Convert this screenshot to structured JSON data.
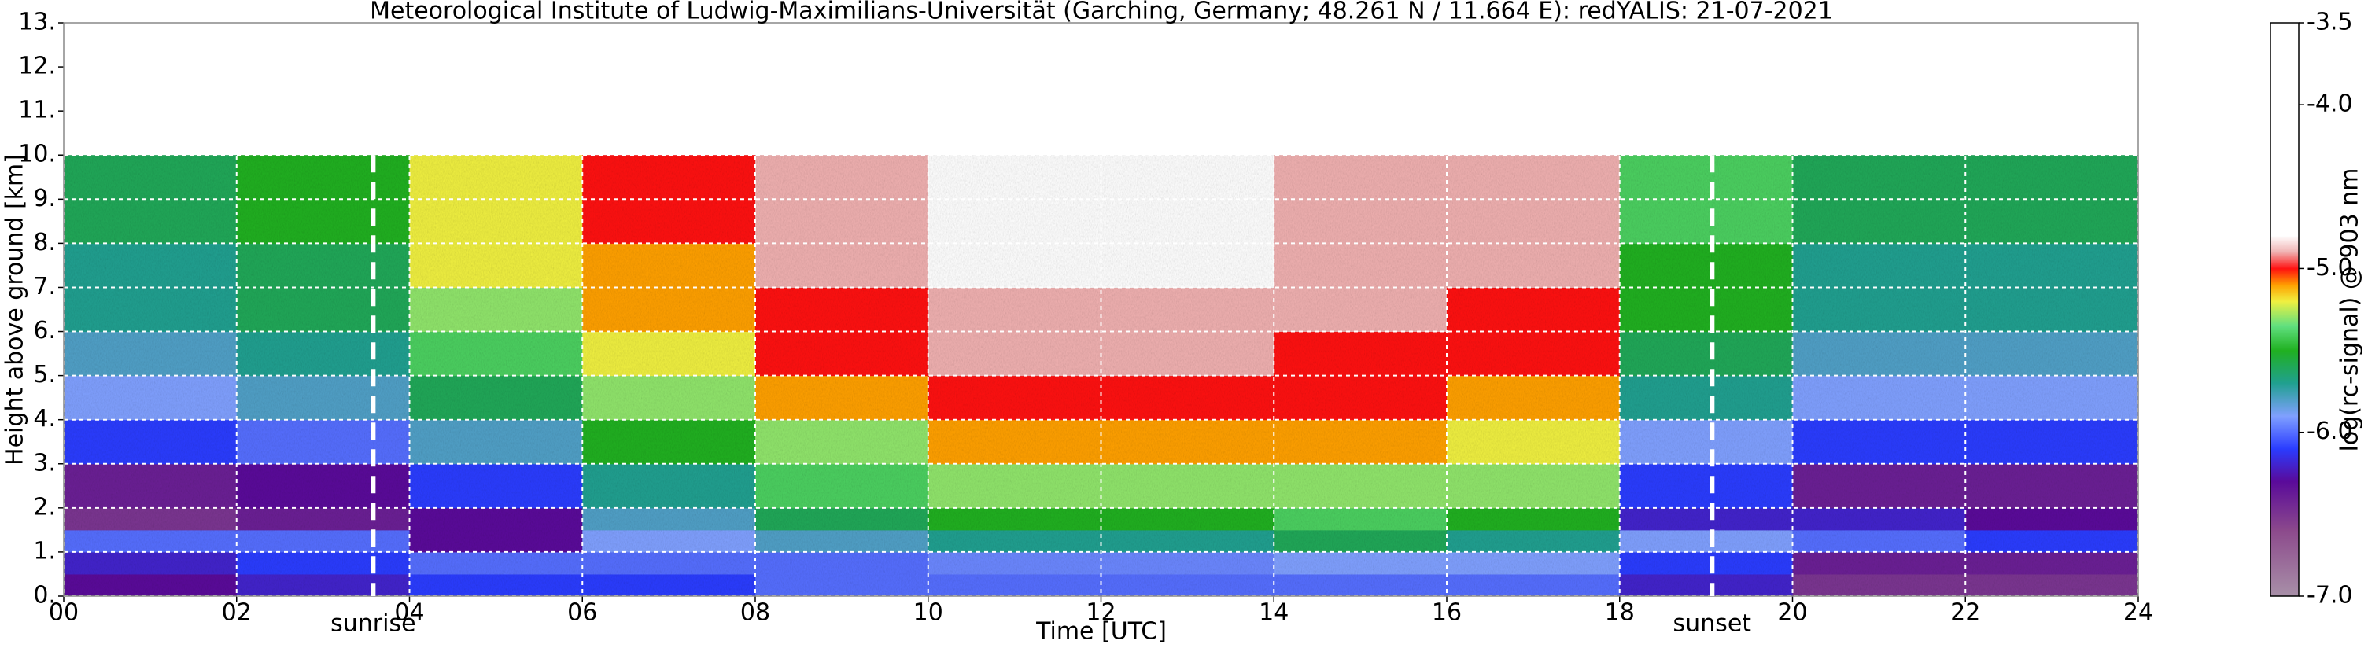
{
  "chart_data": {
    "type": "heatmap",
    "title": "Meteorological Institute of Ludwig-Maximilians-Universität (Garching, Germany; 48.261 N / 11.664 E):    redYALIS: 21-07-2021",
    "x_label": "Time [UTC]",
    "y_label": "Height above ground [km]",
    "xlim": [
      0,
      24
    ],
    "ylim": [
      0,
      13
    ],
    "xticks": [
      {
        "value": 0,
        "label": "00"
      },
      {
        "value": 2,
        "label": "02"
      },
      {
        "value": 4,
        "label": "04"
      },
      {
        "value": 6,
        "label": "06"
      },
      {
        "value": 8,
        "label": "08"
      },
      10,
      12,
      14,
      16,
      18,
      20,
      22,
      24
    ],
    "yticks": [
      {
        "value": 0,
        "label": "0."
      },
      {
        "value": 1,
        "label": "1."
      },
      {
        "value": 2,
        "label": "2."
      },
      {
        "value": 3,
        "label": "3."
      },
      {
        "value": 4,
        "label": "4."
      },
      {
        "value": 5,
        "label": "5."
      },
      {
        "value": 6,
        "label": "6."
      },
      {
        "value": 7,
        "label": "7."
      },
      {
        "value": 8,
        "label": "8."
      },
      {
        "value": 9,
        "label": "9."
      },
      {
        "value": 10,
        "label": "10."
      },
      {
        "value": 11,
        "label": "11."
      },
      {
        "value": 12,
        "label": "12."
      },
      {
        "value": 13,
        "label": "13."
      }
    ],
    "grid": true,
    "x_bins": [
      0,
      2,
      4,
      6,
      8,
      10,
      12,
      14,
      16,
      18,
      20,
      22,
      24
    ],
    "y_bins": [
      0,
      0.5,
      1,
      1.5,
      2,
      3,
      4,
      5,
      6,
      7,
      8,
      9,
      10
    ],
    "z": [
      [
        -6.3,
        -6.2,
        -6.1,
        -6.1,
        -6.0,
        -6.0,
        -6.0,
        -6.0,
        -6.0,
        -6.2,
        -6.5,
        -6.5
      ],
      [
        -6.2,
        -6.1,
        -6.0,
        -6.0,
        -6.0,
        -5.95,
        -5.95,
        -5.9,
        -5.9,
        -6.1,
        -6.4,
        -6.4
      ],
      [
        -6.0,
        -6.0,
        -6.3,
        -5.9,
        -5.8,
        -5.7,
        -5.7,
        -5.6,
        -5.7,
        -5.9,
        -6.0,
        -6.1
      ],
      [
        -6.5,
        -6.4,
        -6.3,
        -5.8,
        -5.6,
        -5.5,
        -5.5,
        -5.4,
        -5.5,
        -6.2,
        -6.2,
        -6.3
      ],
      [
        -6.4,
        -6.3,
        -6.1,
        -5.7,
        -5.4,
        -5.3,
        -5.3,
        -5.3,
        -5.3,
        -6.1,
        -6.4,
        -6.4
      ],
      [
        -6.1,
        -6.0,
        -5.8,
        -5.5,
        -5.3,
        -5.1,
        -5.1,
        -5.1,
        -5.2,
        -5.9,
        -6.1,
        -6.1
      ],
      [
        -5.9,
        -5.8,
        -5.6,
        -5.3,
        -5.1,
        -5.0,
        -5.0,
        -5.0,
        -5.1,
        -5.7,
        -5.9,
        -5.9
      ],
      [
        -5.8,
        -5.7,
        -5.4,
        -5.2,
        -5.0,
        -4.9,
        -4.9,
        -5.0,
        -5.0,
        -5.6,
        -5.8,
        -5.8
      ],
      [
        -5.7,
        -5.6,
        -5.3,
        -5.1,
        -5.0,
        -4.9,
        -4.9,
        -4.9,
        -5.0,
        -5.5,
        -5.7,
        -5.7
      ],
      [
        -5.7,
        -5.6,
        -5.2,
        -5.1,
        -4.9,
        -4.8,
        -4.8,
        -4.9,
        -4.9,
        -5.5,
        -5.7,
        -5.7
      ],
      [
        -5.6,
        -5.5,
        -5.2,
        -5.0,
        -4.9,
        -4.8,
        -4.8,
        -4.9,
        -4.9,
        -5.4,
        -5.6,
        -5.6
      ],
      [
        -5.6,
        -5.5,
        -5.2,
        -5.0,
        -4.9,
        -4.8,
        -4.8,
        -4.9,
        -4.9,
        -5.4,
        -5.6,
        -5.6
      ]
    ],
    "vlines": [
      {
        "x": 3.58,
        "label": "sunrise"
      },
      {
        "x": 19.07,
        "label": "sunset"
      }
    ],
    "colorbar": {
      "label": "log(rc-signal) @ 903 nm",
      "lim": [
        -7,
        -3.5
      ],
      "ticks": [
        -3.5,
        {
          "value": -4,
          "label": "-4.0"
        },
        {
          "value": -5,
          "label": "-5.0"
        },
        {
          "value": -6,
          "label": "-6.0"
        },
        {
          "value": -7,
          "label": "-7.0"
        }
      ],
      "colorscale": [
        {
          "value": -7,
          "color": "#a890a8"
        },
        {
          "value": -6.6,
          "color": "#8c4a8c"
        },
        {
          "value": -6.3,
          "color": "#5a0a9a"
        },
        {
          "value": -6.1,
          "color": "#2a3cff"
        },
        {
          "value": -5.9,
          "color": "#80a0ff"
        },
        {
          "value": -5.7,
          "color": "#20a090"
        },
        {
          "value": -5.5,
          "color": "#20b020"
        },
        {
          "value": -5.35,
          "color": "#60e080"
        },
        {
          "value": -5.2,
          "color": "#f0f040"
        },
        {
          "value": -5.1,
          "color": "#ffa000"
        },
        {
          "value": -5.0,
          "color": "#ff1010"
        },
        {
          "value": -4.9,
          "color": "#f0b0b0"
        },
        {
          "value": -4.8,
          "color": "#ffffff"
        },
        {
          "value": -3.5,
          "color": "#ffffff"
        }
      ]
    }
  }
}
